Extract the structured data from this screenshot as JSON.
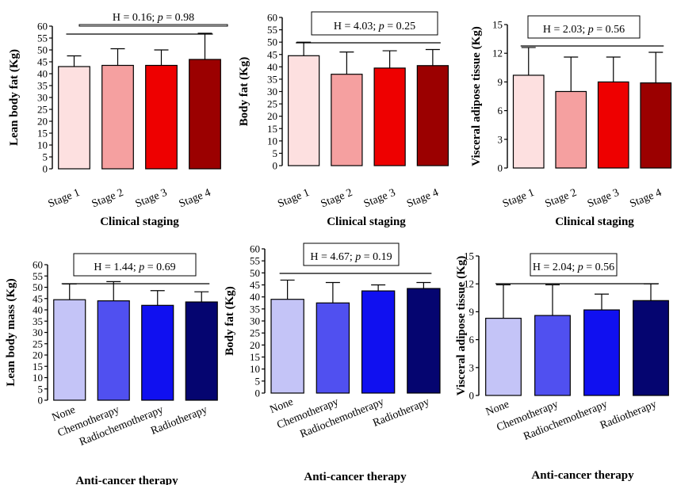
{
  "chart_data": [
    {
      "type": "bar",
      "ylabel": "Lean body fat (Kg)",
      "xlabel": "Clinical staging",
      "annotation": "H = 0.16; p = 0.98",
      "categories": [
        "Stage 1",
        "Stage 2",
        "Stage 3",
        "Stage 4"
      ],
      "values": [
        43,
        43.5,
        43.5,
        46
      ],
      "errors": [
        4.5,
        7,
        6.5,
        11
      ],
      "colors": [
        "#fde0e0",
        "#f5a0a0",
        "#ee0000",
        "#9b0000"
      ],
      "ylim": [
        0,
        60
      ],
      "yticks": [
        "0",
        "5",
        "10",
        "15",
        "20",
        "25",
        "30",
        "35",
        "40",
        "45",
        "50",
        "55",
        "60"
      ],
      "ytick_values": [
        0,
        5,
        10,
        15,
        20,
        25,
        30,
        35,
        40,
        45,
        50,
        55,
        60
      ],
      "error_bars": "SD (upper)"
    },
    {
      "type": "bar",
      "ylabel": "Body fat (Kg)",
      "xlabel": "Clinical staging",
      "annotation": "H = 4.03; p = 0.25",
      "categories": [
        "Stage 1",
        "Stage 2",
        "Stage 3",
        "Stage 4"
      ],
      "values": [
        44.5,
        37,
        39.5,
        40.5
      ],
      "errors": [
        5.5,
        9,
        7,
        6.5
      ],
      "colors": [
        "#fde0e0",
        "#f5a0a0",
        "#ee0000",
        "#9b0000"
      ],
      "ylim": [
        0,
        60
      ],
      "yticks": [
        "0",
        "5",
        "10",
        "15",
        "20",
        "25",
        "30",
        "35",
        "40",
        "45",
        "50",
        "55",
        "60"
      ],
      "ytick_values": [
        0,
        5,
        10,
        15,
        20,
        25,
        30,
        35,
        40,
        45,
        50,
        55,
        60
      ],
      "error_bars": "SD (upper)"
    },
    {
      "type": "bar",
      "ylabel": "Visceral adipose tissue (Kg)",
      "xlabel": "Clinical staging",
      "annotation": "H = 2.03; p = 0.56",
      "categories": [
        "Stage 1",
        "Stage 2",
        "Stage 3",
        "Stage 4"
      ],
      "values": [
        9.7,
        8.0,
        9.0,
        8.9
      ],
      "errors": [
        2.9,
        3.6,
        2.6,
        3.2
      ],
      "colors": [
        "#fde0e0",
        "#f5a0a0",
        "#ee0000",
        "#9b0000"
      ],
      "ylim": [
        0,
        15
      ],
      "yticks": [
        "0",
        "3",
        "6",
        "9",
        "12",
        "15"
      ],
      "ytick_values": [
        0,
        3,
        6,
        9,
        12,
        15
      ],
      "error_bars": "SD (upper)"
    },
    {
      "type": "bar",
      "ylabel": "Lean body mass (Kg)",
      "xlabel": "Anti-cancer therapy",
      "annotation": "H = 1.44; p = 0.69",
      "categories": [
        "None",
        "Chemotherapy",
        "Radiochemotherapy",
        "Radiotherapy"
      ],
      "values": [
        44.5,
        44,
        42,
        43.5
      ],
      "errors": [
        7,
        8.5,
        6.5,
        4.5
      ],
      "colors": [
        "#c4c4f7",
        "#5050f0",
        "#1010f0",
        "#050570"
      ],
      "ylim": [
        0,
        60
      ],
      "yticks": [
        "0",
        "5",
        "10",
        "15",
        "20",
        "25",
        "30",
        "35",
        "40",
        "45",
        "50",
        "55",
        "60"
      ],
      "ytick_values": [
        0,
        5,
        10,
        15,
        20,
        25,
        30,
        35,
        40,
        45,
        50,
        55,
        60
      ],
      "error_bars": "SD (upper)"
    },
    {
      "type": "bar",
      "ylabel": "Body fat (Kg)",
      "xlabel": "Anti-cancer therapy",
      "annotation": "H = 4.67; p = 0.19",
      "categories": [
        "None",
        "Chemotherapy",
        "Radiochemotherapy",
        "Radiotherapy"
      ],
      "values": [
        39,
        37.5,
        42.5,
        43.5
      ],
      "errors": [
        8,
        8.5,
        2.5,
        2.5
      ],
      "colors": [
        "#c4c4f7",
        "#5050f0",
        "#1010f0",
        "#050570"
      ],
      "ylim": [
        0,
        60
      ],
      "yticks": [
        "0",
        "5",
        "10",
        "15",
        "20",
        "25",
        "30",
        "35",
        "40",
        "45",
        "50",
        "55",
        "60"
      ],
      "ytick_values": [
        0,
        5,
        10,
        15,
        20,
        25,
        30,
        35,
        40,
        45,
        50,
        55,
        60
      ],
      "error_bars": "SD (upper)"
    },
    {
      "type": "bar",
      "ylabel": "Visceral adipose tissue (Kg)",
      "xlabel": "Anti-cancer therapy",
      "annotation": "H = 2.04; p = 0.56",
      "categories": [
        "None",
        "Chemotherapy",
        "Radiochemotherapy",
        "Radiotherapy"
      ],
      "values": [
        8.3,
        8.6,
        9.2,
        10.2
      ],
      "errors": [
        3.6,
        3.3,
        1.7,
        1.8
      ],
      "colors": [
        "#c4c4f7",
        "#5050f0",
        "#1010f0",
        "#050570"
      ],
      "ylim": [
        0,
        15
      ],
      "yticks": [
        "0",
        "3",
        "6",
        "9",
        "12",
        "15"
      ],
      "ytick_values": [
        0,
        3,
        6,
        9,
        12,
        15
      ],
      "error_bars": "SD (upper)"
    }
  ]
}
